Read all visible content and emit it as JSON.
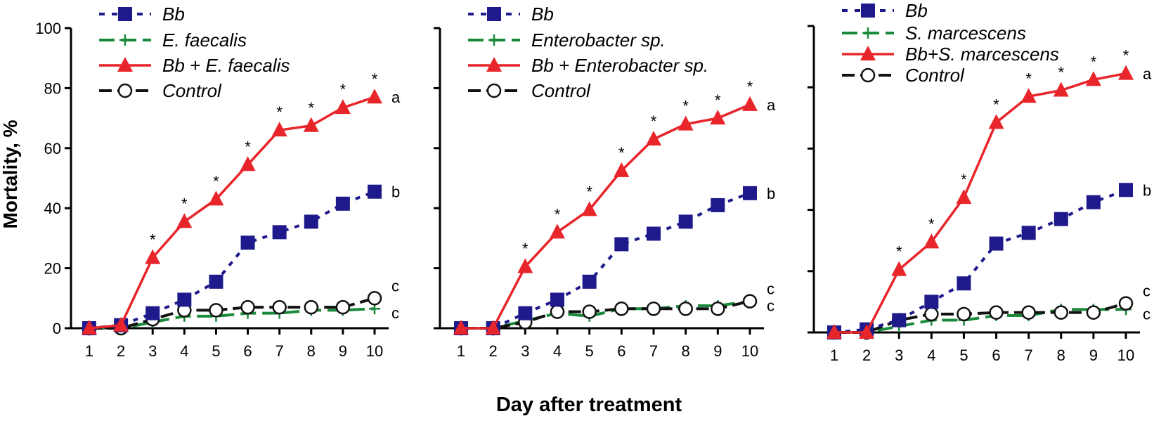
{
  "figure": {
    "y_axis_label": "Mortality, %",
    "x_axis_label": "Day after treatment"
  },
  "colors": {
    "bb": "#1f1a8c",
    "bacteria": "#1a8a3a",
    "combo": "#e8252a",
    "control": "#111111",
    "axis": "#000000"
  },
  "chart_data": [
    {
      "type": "line",
      "panel": "left",
      "x": [
        1,
        2,
        3,
        4,
        5,
        6,
        7,
        8,
        9,
        10
      ],
      "ylim": [
        0,
        100
      ],
      "yticks": [
        0,
        20,
        40,
        60,
        80,
        100
      ],
      "xlabel": "Day after treatment",
      "ylabel": "Mortality, %",
      "series": [
        {
          "key": "bb",
          "name": "Bb",
          "italic_part": "Bb",
          "values": [
            0,
            1,
            5,
            9.5,
            15.5,
            28.5,
            32,
            35.5,
            41.5,
            45.5
          ],
          "end_letter": "b"
        },
        {
          "key": "bacteria",
          "name": "E. faecalis",
          "values": [
            0,
            0,
            2,
            4,
            4,
            5,
            5,
            6,
            6,
            6.5
          ],
          "end_letter": "c"
        },
        {
          "key": "combo",
          "name": "Bb + E. faecalis",
          "values": [
            0,
            1,
            23.5,
            35.5,
            43,
            54.5,
            66,
            67.5,
            73.5,
            77
          ],
          "end_letter": "a",
          "stars": [
            false,
            false,
            true,
            true,
            true,
            true,
            true,
            true,
            true,
            true
          ]
        },
        {
          "key": "control",
          "name": "Control",
          "values": [
            0,
            0,
            3,
            6,
            6,
            7,
            7,
            7,
            7,
            10
          ],
          "end_letter": "c"
        }
      ]
    },
    {
      "type": "line",
      "panel": "middle",
      "x": [
        1,
        2,
        3,
        4,
        5,
        6,
        7,
        8,
        9,
        10
      ],
      "ylim": [
        0,
        100
      ],
      "yticks": [
        0,
        20,
        40,
        60,
        80,
        100
      ],
      "xlabel": "Day after treatment",
      "ylabel": "Mortality, %",
      "series": [
        {
          "key": "bb",
          "name": "Bb",
          "values": [
            0,
            0,
            5,
            9.5,
            15.5,
            28,
            31.5,
            35.5,
            41,
            45
          ],
          "end_letter": "b"
        },
        {
          "key": "bacteria",
          "name": "Enterobacter sp.",
          "values": [
            0,
            0,
            2.5,
            5,
            4,
            6.5,
            6.5,
            7.5,
            7.5,
            9
          ],
          "end_letter": "c"
        },
        {
          "key": "combo",
          "name": "Bb + Enterobacter sp.",
          "values": [
            0,
            0,
            20.5,
            32,
            39.5,
            52.5,
            63,
            68,
            70,
            74.5
          ],
          "end_letter": "a",
          "stars": [
            false,
            false,
            true,
            true,
            true,
            true,
            true,
            true,
            true,
            true
          ]
        },
        {
          "key": "control",
          "name": "Control",
          "values": [
            0,
            0,
            2,
            5.5,
            5.5,
            6.5,
            6.5,
            6.5,
            6.5,
            9
          ],
          "end_letter": "c"
        }
      ]
    },
    {
      "type": "line",
      "panel": "right",
      "x": [
        1,
        2,
        3,
        4,
        5,
        6,
        7,
        8,
        9,
        10
      ],
      "ylim": [
        0,
        100
      ],
      "yticks": [
        0,
        20,
        40,
        60,
        80,
        100
      ],
      "xlabel": "Day after treatment",
      "ylabel": "Mortality, %",
      "series": [
        {
          "key": "bb",
          "name": "Bb",
          "values": [
            0,
            1,
            4,
            10,
            16,
            29,
            32.5,
            37,
            42.5,
            46.5
          ],
          "end_letter": "b"
        },
        {
          "key": "bacteria",
          "name": "S. marcescens",
          "values": [
            0,
            0,
            2,
            4,
            4,
            5.5,
            5.5,
            7.5,
            7.5,
            7.5
          ],
          "end_letter": "c"
        },
        {
          "key": "combo",
          "name": "Bb+S. marcescens",
          "values": [
            0,
            0,
            20.5,
            29.5,
            44,
            68.5,
            77,
            79,
            82.5,
            84.5
          ],
          "end_letter": "a",
          "stars": [
            false,
            false,
            true,
            true,
            true,
            true,
            true,
            true,
            true,
            true
          ]
        },
        {
          "key": "control",
          "name": "Control",
          "values": [
            0,
            0,
            4,
            6,
            6,
            6.5,
            6.5,
            6.5,
            6.5,
            9.5
          ],
          "end_letter": "c"
        }
      ]
    }
  ]
}
